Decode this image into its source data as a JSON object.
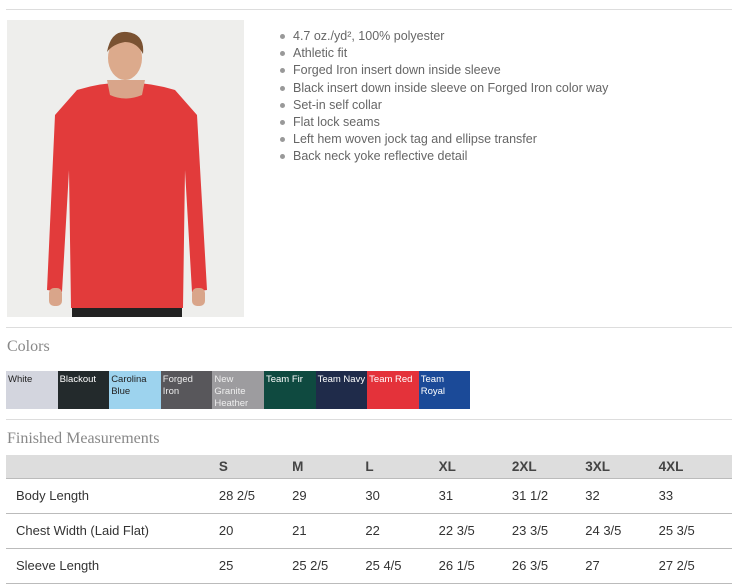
{
  "product": {
    "features": [
      "4.7 oz./yd², 100% polyester",
      "Athletic fit",
      "Forged Iron insert down inside sleeve",
      "Black insert down inside sleeve on Forged Iron color way",
      "Set-in self collar",
      "Flat lock seams",
      "Left hem woven jock tag and ellipse transfer",
      "Back neck yoke reflective detail"
    ]
  },
  "colors": {
    "title": "Colors",
    "swatches": [
      {
        "name": "White",
        "color": "#d3d5de",
        "text": "#222"
      },
      {
        "name": "Blackout",
        "color": "#232a2c",
        "text": "#fff"
      },
      {
        "name": "Carolina Blue",
        "color": "#9dd3ee",
        "text": "#222"
      },
      {
        "name": "Forged Iron",
        "color": "#58575b",
        "text": "#eee"
      },
      {
        "name": "New Granite Heather",
        "color": "#9d9c9f",
        "text": "#eee"
      },
      {
        "name": "Team Fir",
        "color": "#0f4a40",
        "text": "#fff"
      },
      {
        "name": "Team Navy",
        "color": "#1f2b4a",
        "text": "#fff"
      },
      {
        "name": "Team Red",
        "color": "#e4323a",
        "text": "#fff"
      },
      {
        "name": "Team Royal",
        "color": "#1b4a98",
        "text": "#fff"
      }
    ]
  },
  "measurements": {
    "title": "Finished Measurements",
    "sizes": [
      "S",
      "M",
      "L",
      "XL",
      "2XL",
      "3XL",
      "4XL"
    ],
    "rows": [
      {
        "label": "Body Length",
        "values": [
          "28 2/5",
          "29",
          "30",
          "31",
          "31 1/2",
          "32",
          "33"
        ]
      },
      {
        "label": "Chest Width (Laid Flat)",
        "values": [
          "20",
          "21",
          "22",
          "22 3/5",
          "23 3/5",
          "24 3/5",
          "25 3/5"
        ]
      },
      {
        "label": "Sleeve Length",
        "values": [
          "25",
          "25 2/5",
          "25 4/5",
          "26 1/5",
          "26 3/5",
          "27",
          "27 2/5"
        ]
      }
    ]
  }
}
